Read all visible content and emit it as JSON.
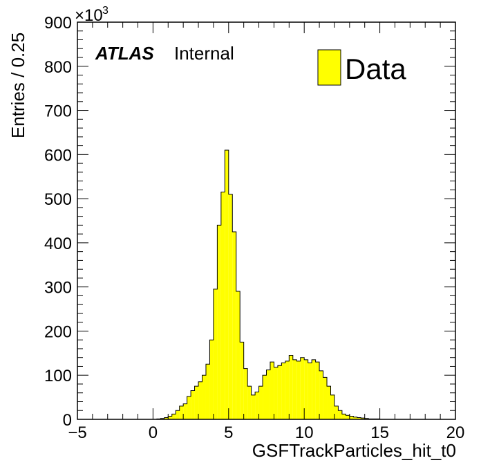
{
  "chart_data": {
    "type": "bar",
    "style": "filled-step-histogram",
    "label_prefix": "ATLAS",
    "label_suffix": "Internal",
    "xlabel": "GSFTrackParticles_hit_t0",
    "ylabel": "Entries / 0.25",
    "y_multiplier": "×10",
    "y_multiplier_exp": "3",
    "xlim": [
      -5,
      20
    ],
    "ylim": [
      0,
      900
    ],
    "x_ticks": [
      -5,
      0,
      5,
      10,
      15,
      20
    ],
    "x_tick_labels": [
      "−5",
      "0",
      "5",
      "10",
      "15",
      "20"
    ],
    "y_ticks": [
      0,
      100,
      200,
      300,
      400,
      500,
      600,
      700,
      800,
      900
    ],
    "y_tick_labels": [
      "0",
      "100",
      "200",
      "300",
      "400",
      "500",
      "600",
      "700",
      "800",
      "900"
    ],
    "bin_width": 0.25,
    "bin_start": 0,
    "values": [
      0,
      1,
      2,
      4,
      7,
      12,
      20,
      30,
      35,
      52,
      65,
      75,
      85,
      100,
      125,
      180,
      295,
      440,
      515,
      610,
      510,
      425,
      290,
      175,
      115,
      75,
      55,
      62,
      75,
      100,
      112,
      130,
      118,
      122,
      128,
      132,
      145,
      135,
      132,
      140,
      135,
      128,
      135,
      130,
      110,
      95,
      75,
      55,
      30,
      20,
      12,
      9,
      7,
      5,
      4,
      3,
      2,
      1,
      1,
      1
    ],
    "series": [
      {
        "name": "Data",
        "color": "#ffff00",
        "edge": "#000000"
      }
    ]
  }
}
